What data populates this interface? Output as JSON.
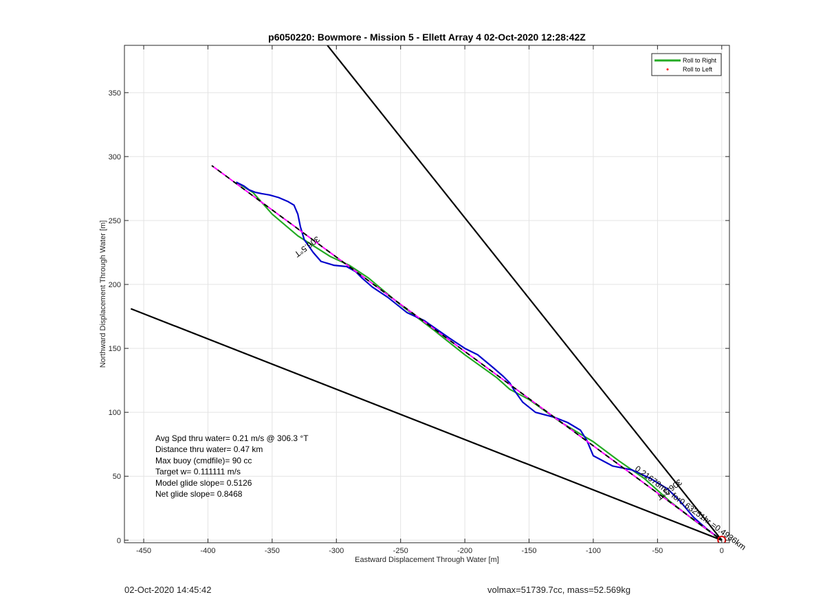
{
  "chart_data": {
    "type": "line",
    "title": "p6050220: Bowmore - Mission 5 - Ellett Array 4 02-Oct-2020 12:28:42Z",
    "xlabel": "Eastward Displacement Through Water [m]",
    "ylabel": "Northward Displacement Through Water [m]",
    "xlim": [
      -465,
      6
    ],
    "ylim": [
      -2,
      387
    ],
    "xticks": [
      -450,
      -400,
      -350,
      -300,
      -250,
      -200,
      -150,
      -100,
      -50,
      0
    ],
    "yticks": [
      0,
      50,
      100,
      150,
      200,
      250,
      300,
      350
    ],
    "xtick_labels": [
      "-450",
      "-400",
      "-350",
      "-300",
      "-250",
      "-200",
      "-150",
      "-100",
      "-50",
      "0"
    ],
    "ytick_labels": [
      "0",
      "50",
      "100",
      "150",
      "200",
      "250",
      "300",
      "350"
    ],
    "grid": true,
    "legend_position": "top-right",
    "legend": [
      {
        "label": "Roll to Right",
        "color": "#22aa22",
        "marker": "line"
      },
      {
        "label": "Roll to Left",
        "color": "#ff0000",
        "marker": "dot"
      }
    ],
    "series": [
      {
        "name": "Roll to Right",
        "color": "#22aa22",
        "x": [
          0,
          -22,
          -40,
          -60,
          -80,
          -100,
          -125,
          -150,
          -165,
          -175,
          -200,
          -225,
          -250,
          -275,
          -290,
          -305,
          -330,
          -350,
          -365,
          -378
        ],
        "y": [
          0,
          16,
          30,
          48,
          62,
          77,
          92,
          110,
          118,
          127,
          145,
          165,
          184,
          205,
          215,
          222,
          238,
          255,
          272,
          280
        ]
      },
      {
        "color": "#0000cc",
        "x": [
          0,
          -12,
          -22,
          -32,
          -42,
          -55,
          -70,
          -85,
          -100,
          -105,
          -110,
          -120,
          -130,
          -145,
          -155,
          -162,
          -165,
          -170,
          -178,
          -190,
          -200,
          -212,
          -222,
          -232,
          -245,
          -260,
          -272,
          -280,
          -285,
          -292,
          -302,
          -312,
          -318,
          -325,
          -328,
          -330,
          -333,
          -338,
          -345,
          -352,
          -358,
          -363,
          -368,
          -372,
          -378
        ],
        "y": [
          0,
          9,
          18,
          30,
          40,
          48,
          55,
          58,
          66,
          78,
          86,
          92,
          96,
          100,
          108,
          118,
          123,
          128,
          135,
          145,
          150,
          158,
          165,
          172,
          178,
          190,
          198,
          205,
          210,
          214,
          215,
          218,
          225,
          235,
          245,
          255,
          262,
          265,
          268,
          270,
          271,
          272,
          274,
          277,
          280
        ]
      },
      {
        "color": "#ff00ff",
        "dash": "dashed",
        "x": [
          0,
          -397
        ],
        "y": [
          0,
          293
        ]
      },
      {
        "color": "#000000",
        "dash": "dashed",
        "x": [
          0,
          -397
        ],
        "y": [
          0,
          293
        ]
      },
      {
        "color": "#000000",
        "x": [
          0,
          -460
        ],
        "y": [
          0,
          181
        ]
      },
      {
        "color": "#000000",
        "x": [
          0,
          -307
        ],
        "y": [
          0,
          387
        ]
      }
    ],
    "end_marker": {
      "x": 0,
      "y": 0,
      "color": "#dd0000"
    },
    "annotations": [
      {
        "text": "306.5°T",
        "x": -315,
        "y": 238,
        "rotate": 143.5
      },
      {
        "text": "306.3°T",
        "x": -33,
        "y": 48,
        "rotate": 143.5
      },
      {
        "text": "0.21678m/s for0.63251hr =0.4936km",
        "x": -68,
        "y": 55,
        "rotate": 36.5
      }
    ],
    "info_text": [
      "Avg Spd thru water=  0.21 m/s @ 306.3 °T",
      "Distance thru water=  0.47 km",
      "Max buoy (cmdfile)= 90 cc",
      "Target w= 0.111111 m/s",
      "Model glide slope= 0.5126",
      "Net glide slope= 0.8468"
    ]
  },
  "footer": {
    "date": "02-Oct-2020 14:45:42",
    "stats": "volmax=51739.7cc, mass=52.569kg"
  }
}
